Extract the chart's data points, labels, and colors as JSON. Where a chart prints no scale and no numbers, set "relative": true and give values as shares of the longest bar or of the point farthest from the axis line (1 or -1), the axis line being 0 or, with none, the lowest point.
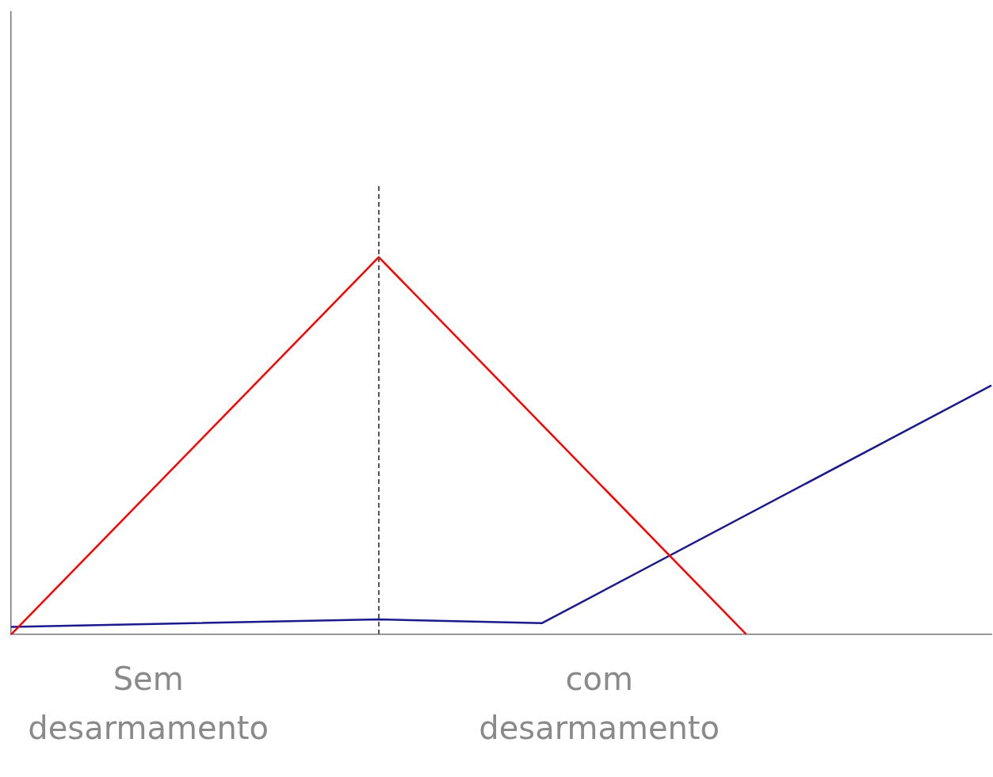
{
  "chart_data": {
    "type": "line",
    "relative": true,
    "legend": false,
    "marker": "none",
    "categories": [
      null,
      null,
      null,
      null,
      null,
      null,
      null,
      null,
      null,
      null,
      null,
      null,
      null,
      null,
      null,
      null,
      null,
      null,
      null,
      null,
      null,
      null,
      null,
      null,
      null
    ],
    "series": [
      {
        "color": "#ff0000",
        "values": [
          0,
          null,
          null,
          null,
          null,
          null,
          null,
          null,
          null,
          1,
          null,
          null,
          null,
          null,
          null,
          null,
          null,
          null,
          0,
          null,
          null,
          null,
          null,
          null,
          null
        ]
      },
      {
        "color": "#1a1a8c",
        "values": [
          0.02,
          null,
          null,
          null,
          null,
          null,
          null,
          null,
          null,
          0.04,
          null,
          null,
          null,
          0.03,
          null,
          null,
          null,
          null,
          null,
          null,
          null,
          null,
          null,
          null,
          0.66
        ]
      }
    ],
    "annotations": [
      "Sem desarmamento",
      "com desarmamento"
    ]
  }
}
